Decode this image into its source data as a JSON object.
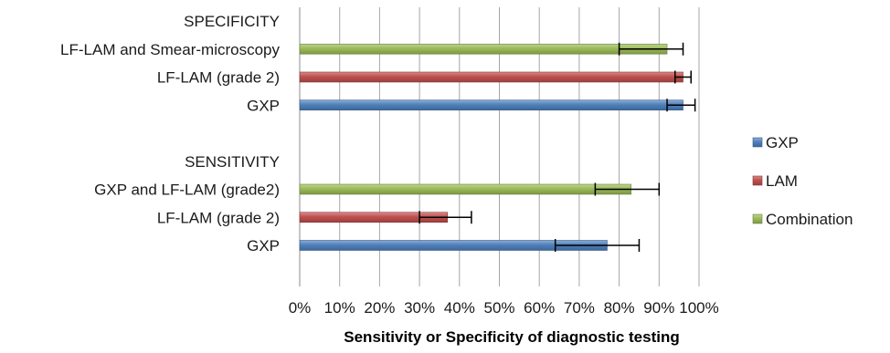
{
  "chart_data": {
    "type": "bar",
    "orientation": "horizontal",
    "xlabel": "Sensitivity or Specificity of diagnostic testing",
    "xlim": [
      0,
      100
    ],
    "x_ticks": [
      "0%",
      "10%",
      "20%",
      "30%",
      "40%",
      "50%",
      "60%",
      "70%",
      "80%",
      "90%",
      "100%"
    ],
    "grid": "vertical gridlines",
    "legend_position": "right",
    "categories": [
      "SPECIFICITY",
      "LF-LAM and Smear-microscopy",
      "LF-LAM (grade 2)",
      "GXP",
      "",
      "SENSITIVITY",
      "GXP and LF-LAM (grade2)",
      "LF-LAM (grade 2)",
      "GXP"
    ],
    "series": [
      {
        "name": "GXP",
        "color": "#4f81bd",
        "values": [
          null,
          null,
          null,
          96,
          null,
          null,
          null,
          null,
          77
        ],
        "err_low": [
          null,
          null,
          null,
          92,
          null,
          null,
          null,
          null,
          64
        ],
        "err_high": [
          null,
          null,
          null,
          99,
          null,
          null,
          null,
          null,
          85
        ]
      },
      {
        "name": "LAM",
        "color": "#c0504d",
        "values": [
          null,
          null,
          96,
          null,
          null,
          null,
          null,
          37,
          null
        ],
        "err_low": [
          null,
          null,
          94,
          null,
          null,
          null,
          null,
          30,
          null
        ],
        "err_high": [
          null,
          null,
          98,
          null,
          null,
          null,
          null,
          43,
          null
        ]
      },
      {
        "name": "Combination",
        "color": "#9bbb59",
        "values": [
          null,
          92,
          null,
          null,
          null,
          null,
          83,
          null,
          null
        ],
        "err_low": [
          null,
          80,
          null,
          null,
          null,
          null,
          74,
          null,
          null
        ],
        "err_high": [
          null,
          96,
          null,
          null,
          null,
          null,
          90,
          null,
          null
        ]
      }
    ]
  }
}
